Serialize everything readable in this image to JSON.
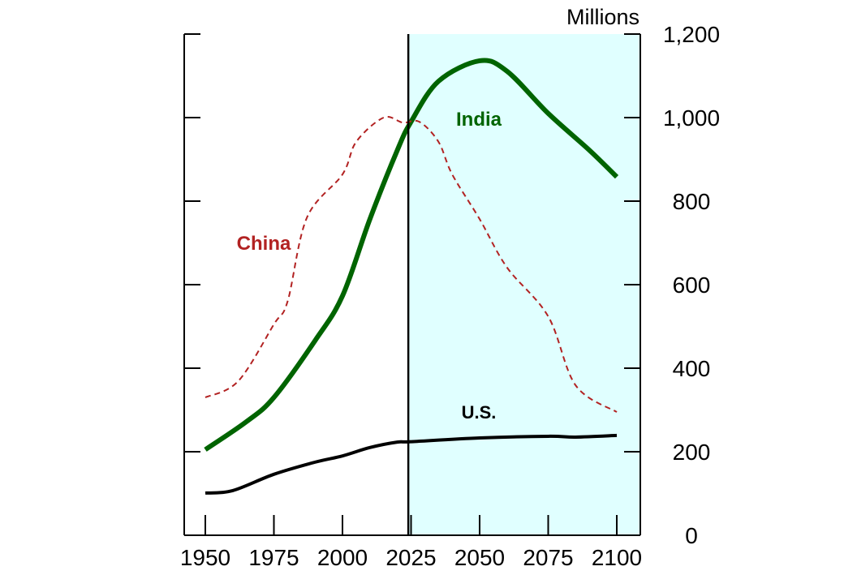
{
  "chart_data": {
    "type": "line",
    "title": "",
    "unit_label": "Millions",
    "xlim": [
      1950,
      2100
    ],
    "ylim": [
      0,
      1200
    ],
    "x_ticks": [
      1950,
      1975,
      2000,
      2025,
      2050,
      2075,
      2100
    ],
    "x_tick_labels": [
      "1950",
      "1975",
      "2000",
      "2025",
      "2050",
      "2075",
      "2100"
    ],
    "y_ticks": [
      0,
      200,
      400,
      600,
      800,
      1000,
      1200
    ],
    "y_tick_labels": [
      "0",
      "200",
      "400",
      "600",
      "800",
      "1,000",
      "1,200"
    ],
    "y_axis_side": "right",
    "grid": false,
    "projection_start": 2024,
    "projection_shade_color": "#e0ffff",
    "series": [
      {
        "name": "India",
        "color": "#006400",
        "style": "solid-thick",
        "x": [
          1950,
          1965,
          1975,
          1990,
          2000,
          2010,
          2020,
          2025,
          2035,
          2050,
          2060,
          2075,
          2090,
          2100
        ],
        "y": [
          205,
          272,
          330,
          466,
          573,
          757,
          922,
          990,
          1087,
          1136,
          1111,
          1010,
          922,
          858
        ]
      },
      {
        "name": "China",
        "color": "#b22222",
        "style": "dashed",
        "x": [
          1950,
          1962,
          1975,
          1980,
          1987,
          2000,
          2005,
          2015,
          2022,
          2028,
          2035,
          2040,
          2050,
          2060,
          2075,
          2085,
          2100
        ],
        "y": [
          330,
          369,
          505,
          560,
          760,
          864,
          942,
          1000,
          988,
          990,
          942,
          864,
          757,
          641,
          524,
          359,
          295
        ]
      },
      {
        "name": "U.S.",
        "color": "#000000",
        "style": "solid",
        "x": [
          1950,
          1960,
          1975,
          1990,
          2000,
          2010,
          2020,
          2025,
          2050,
          2075,
          2085,
          2100
        ],
        "y": [
          101,
          107,
          146,
          175,
          190,
          210,
          223,
          224,
          233,
          237,
          235,
          239
        ]
      }
    ]
  }
}
